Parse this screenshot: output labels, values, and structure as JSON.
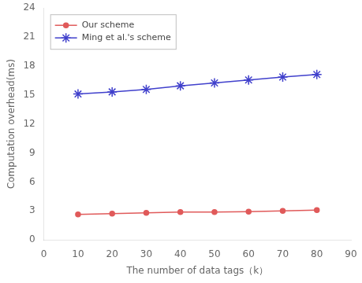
{
  "chart_data": {
    "type": "line",
    "xlabel": "The number of data tags（k）",
    "ylabel": "Computation overhead(ms)",
    "x": [
      10,
      20,
      30,
      40,
      50,
      60,
      70,
      80
    ],
    "series": [
      {
        "name": "Our scheme",
        "color": "#e05a5a",
        "marker": "circle",
        "line_style": "solid",
        "values": [
          2.65,
          2.72,
          2.8,
          2.88,
          2.88,
          2.93,
          3.0,
          3.08
        ]
      },
      {
        "name": "Ming et al.'s scheme",
        "color": "#4040cc",
        "marker": "star",
        "line_style": "solid",
        "values": [
          15.1,
          15.32,
          15.58,
          15.95,
          16.25,
          16.55,
          16.85,
          17.12
        ]
      }
    ],
    "xlim": [
      0,
      90
    ],
    "ylim": [
      0,
      24
    ],
    "xticks": [
      0,
      10,
      20,
      30,
      40,
      50,
      60,
      70,
      80,
      90
    ],
    "yticks": [
      0,
      3,
      6,
      9,
      12,
      15,
      18,
      21,
      24
    ],
    "grid": false,
    "legend": "upper left"
  }
}
